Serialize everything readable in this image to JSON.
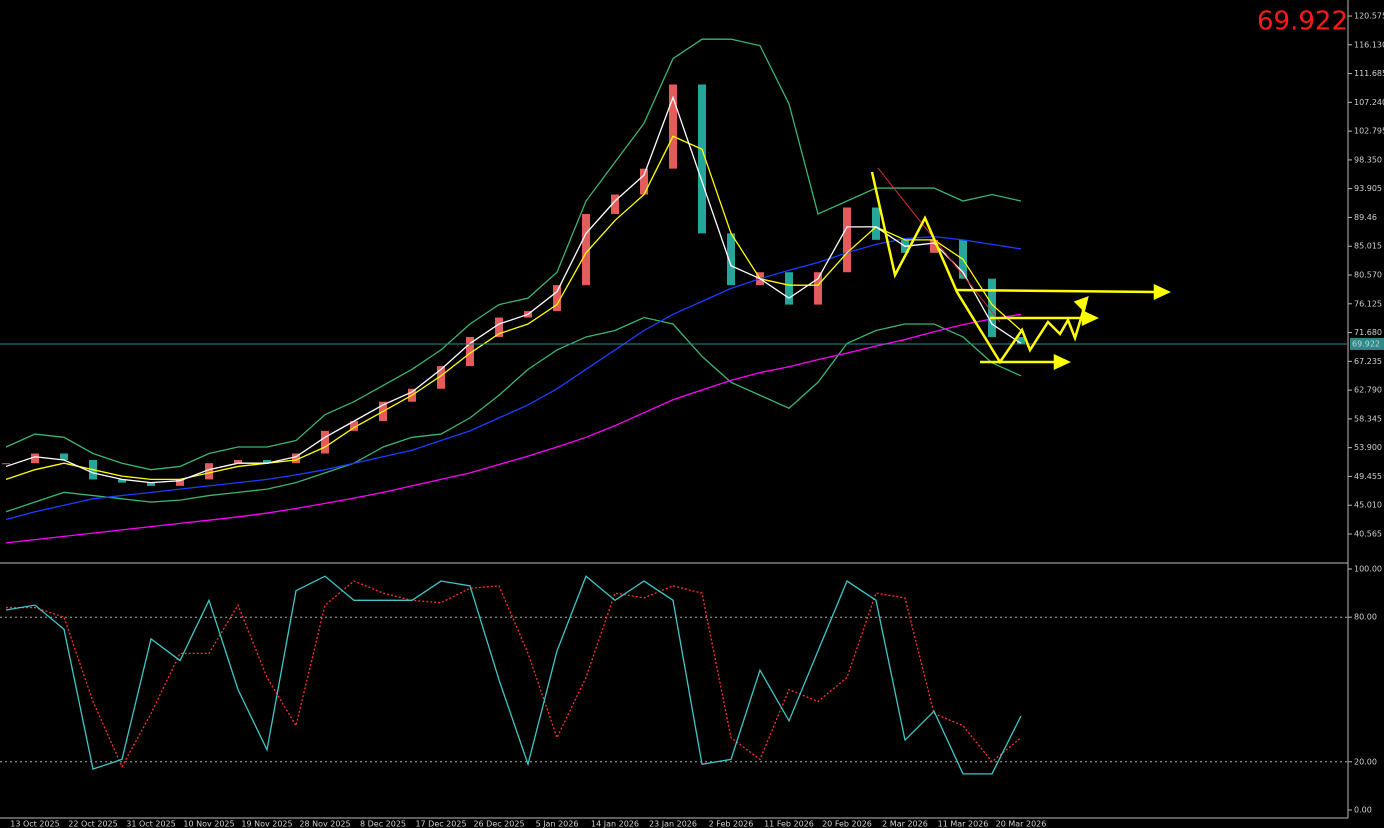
{
  "chart_data": [
    {
      "type": "candlestick",
      "last_price": 69.922,
      "categories": [
        null,
        "13 Oct 2025",
        null,
        "22 Oct 2025",
        null,
        "31 Oct 2025",
        null,
        "10 Nov 2025",
        null,
        "19 Nov 2025",
        null,
        "28 Nov 2025",
        null,
        "8 Dec 2025",
        null,
        "17 Dec 2025",
        null,
        "26 Dec 2025",
        null,
        "5 Jan 2026",
        null,
        "14 Jan 2026",
        null,
        "23 Jan 2026",
        null,
        "2 Feb 2026",
        null,
        "11 Feb 2026",
        null,
        "20 Feb 2026",
        null,
        "2 Mar 2026",
        null,
        "11 Mar 2026",
        null,
        "20 Mar 2026"
      ],
      "close": [
        51.5,
        53,
        52,
        49,
        48.5,
        48,
        49,
        51.5,
        52,
        51.5,
        53,
        56.5,
        58,
        61,
        63,
        66.5,
        71,
        74,
        75,
        79,
        90,
        93,
        97,
        110,
        87,
        79,
        81,
        76,
        81,
        91,
        86,
        84,
        86,
        80,
        71,
        69.9
      ],
      "up_color": "#e35b5b",
      "down_color": "#26a69a",
      "series": [
        {
          "color": "#3cb371",
          "values": [
            54,
            56,
            55.5,
            53,
            51.5,
            50.5,
            51,
            53,
            54,
            54,
            55,
            59,
            61,
            63.5,
            66,
            69,
            73,
            76,
            77,
            81,
            92,
            98,
            104,
            114,
            117,
            117,
            116,
            107,
            90,
            92,
            94,
            94,
            94,
            92,
            93,
            92
          ]
        },
        {
          "color": "#3cb371",
          "values": [
            44,
            45.5,
            47,
            46.5,
            46,
            45.5,
            45.8,
            46.5,
            47,
            47.5,
            48.5,
            50,
            51.5,
            54,
            55.5,
            56,
            58.5,
            62,
            66,
            69,
            71,
            72,
            74,
            73,
            68,
            64,
            62,
            60,
            64,
            70,
            72,
            73,
            73,
            71,
            67,
            65
          ]
        },
        {
          "color": "#ff00ff",
          "values": [
            39.2,
            39.7,
            40.2,
            40.7,
            41.2,
            41.7,
            42.2,
            42.7,
            43.2,
            43.8,
            44.5,
            45.3,
            46.1,
            47,
            48,
            49,
            50,
            51.3,
            52.6,
            54,
            55.5,
            57.3,
            59.3,
            61.3,
            62.8,
            64.3,
            65.5,
            66.4,
            67.5,
            68.5,
            69.6,
            70.6,
            71.8,
            72.9,
            73.8,
            74.5
          ]
        },
        {
          "color": "#1e3cff",
          "values": [
            42.8,
            44,
            45,
            46,
            46.5,
            47,
            47.5,
            48,
            48.5,
            49,
            49.7,
            50.5,
            51.5,
            52.5,
            53.5,
            55,
            56.5,
            58.5,
            60.5,
            63,
            66,
            69,
            72,
            74.5,
            76.5,
            78.5,
            80,
            81.3,
            82.5,
            84,
            85.3,
            86.2,
            86.5,
            86,
            85.3,
            84.6
          ]
        },
        {
          "color": "#ffff00",
          "values": [
            49,
            50.5,
            51.5,
            50.5,
            49.5,
            49,
            49,
            50,
            51,
            51.5,
            52,
            54,
            57,
            59.5,
            62,
            65,
            68.5,
            71.5,
            73,
            76,
            84,
            89,
            93,
            102,
            100,
            87,
            80,
            79,
            79,
            84,
            88,
            86,
            86,
            83,
            76,
            72
          ]
        },
        {
          "color": "#ffffff",
          "values": [
            51,
            52.5,
            52,
            50,
            49,
            48.5,
            48.8,
            50.5,
            51.5,
            51.5,
            52.5,
            55.5,
            58,
            60.5,
            62.5,
            66,
            70,
            73,
            74.5,
            78,
            87,
            92,
            96,
            108,
            95,
            82,
            80,
            77,
            80,
            88,
            88,
            85,
            85.5,
            81,
            73,
            70
          ]
        }
      ],
      "ylim": [
        36.24,
        123.05
      ],
      "yticks": [
        120.575,
        {
          "value": 116.13,
          "label": "116.130"
        },
        111.685,
        {
          "value": 107.24,
          "label": "107.240"
        },
        102.795,
        {
          "value": 98.35,
          "label": "98.350"
        },
        93.905,
        89.46,
        85.015,
        {
          "value": 80.57,
          "label": "80.570"
        },
        76.125,
        {
          "value": 71.68,
          "label": "71.680"
        },
        67.235,
        {
          "value": 62.79,
          "label": "62.790"
        },
        58.345,
        {
          "value": 53.9,
          "label": "53.900"
        },
        49.455,
        {
          "value": 45.01,
          "label": "45.010"
        },
        40.565
      ]
    },
    {
      "type": "line",
      "series": [
        {
          "color": "#ff3030",
          "values": [
            84,
            84,
            80,
            45,
            18,
            40,
            65,
            65,
            85,
            55,
            35,
            85,
            95,
            90,
            87,
            86,
            92,
            93,
            65,
            30,
            55,
            90,
            88,
            93,
            90,
            30,
            21,
            50,
            45,
            55,
            90,
            88,
            40,
            35,
            20,
            30
          ]
        },
        {
          "color": "#3fc6c6",
          "values": [
            83,
            85,
            75,
            17,
            21,
            71,
            62,
            87,
            50,
            25,
            91,
            97,
            87,
            87,
            87,
            95,
            93,
            54,
            19,
            66,
            97,
            87,
            95,
            87,
            19,
            21,
            58,
            37,
            66,
            95,
            87,
            29,
            41,
            15,
            15,
            39
          ]
        }
      ],
      "ylim": [
        -3.32,
        102.07
      ],
      "yticks": [
        {
          "value": 100,
          "label": "100.00"
        },
        {
          "value": 80,
          "label": "80.00"
        },
        {
          "value": 20,
          "label": "20.00"
        },
        {
          "value": 0,
          "label": "0.00"
        }
      ]
    }
  ]
}
